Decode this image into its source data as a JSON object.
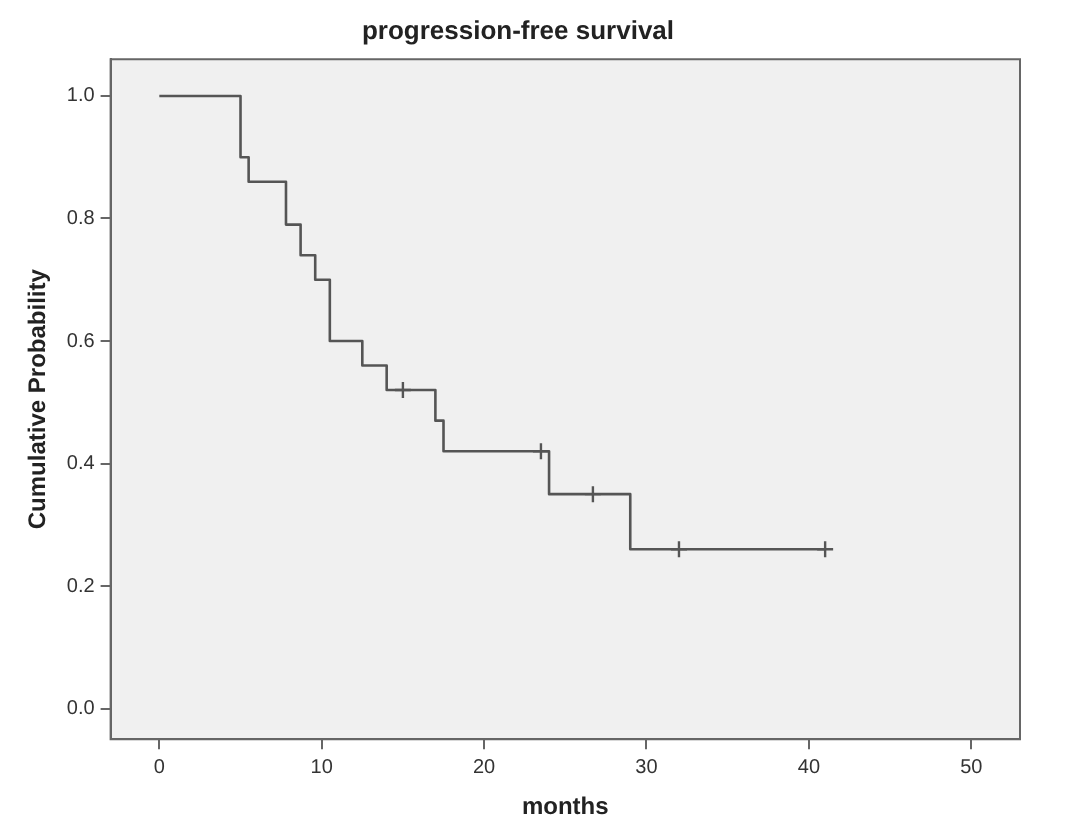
{
  "chart_data": {
    "type": "step",
    "title": "progression-free survival",
    "xlabel": "months",
    "ylabel": "Cumulative Probability",
    "xlim": [
      -3,
      53
    ],
    "xticks": [
      0,
      10,
      20,
      30,
      40,
      50
    ],
    "ylim": [
      -0.05,
      1.06
    ],
    "yticks": [
      {
        "value": 0,
        "label": "0.0"
      },
      {
        "value": 0.2,
        "label": "0.2"
      },
      {
        "value": 0.4,
        "label": "0.4"
      },
      {
        "value": 0.6,
        "label": "0.6"
      },
      {
        "value": 0.8,
        "label": "0.8"
      },
      {
        "value": 1,
        "label": "1.0"
      }
    ],
    "grid": false,
    "legend": false,
    "series": [
      {
        "type": "step",
        "color": "#555555",
        "x": [
          0,
          5,
          5.5,
          7.8,
          8.7,
          9.6,
          10.5,
          12.5,
          14,
          17,
          17.5,
          24,
          29,
          41
        ],
        "values": [
          1,
          0.9,
          0.86,
          0.79,
          0.74,
          0.7,
          0.6,
          0.56,
          0.52,
          0.47,
          0.42,
          0.35,
          0.26,
          0.26
        ]
      },
      {
        "type": "scatter",
        "color": "#555555",
        "marker": "cross",
        "x": [
          15,
          23.5,
          26.7,
          32,
          41
        ],
        "values": [
          0.52,
          0.42,
          0.35,
          0.26,
          0.26
        ]
      }
    ]
  }
}
